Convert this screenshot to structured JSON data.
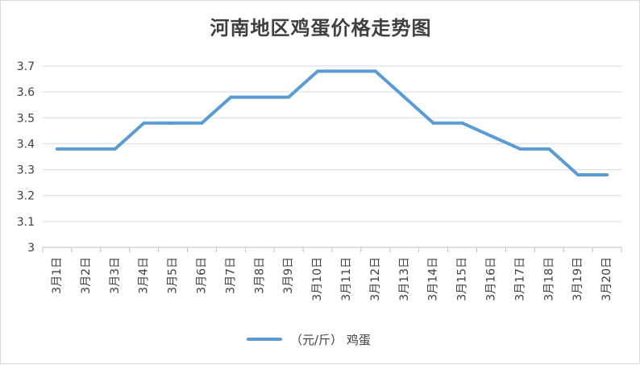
{
  "chart_data": {
    "type": "line",
    "title": "河南地区鸡蛋价格走势图",
    "categories": [
      "3月1日",
      "3月2日",
      "3月3日",
      "3月4日",
      "3月5日",
      "3月6日",
      "3月7日",
      "3月8日",
      "3月9日",
      "3月10日",
      "3月11日",
      "3月12日",
      "3月13日",
      "3月14日",
      "3月15日",
      "3月16日",
      "3月17日",
      "3月18日",
      "3月19日",
      "3月20日"
    ],
    "series": [
      {
        "name": "（元/斤） 鸡蛋",
        "color": "#5b9bd5",
        "values": [
          3.38,
          3.38,
          3.38,
          3.48,
          3.48,
          3.48,
          3.58,
          3.58,
          3.58,
          3.68,
          3.68,
          3.68,
          3.58,
          3.48,
          3.48,
          3.43,
          3.38,
          3.38,
          3.28,
          3.28
        ]
      }
    ],
    "ylim": [
      3,
      3.7
    ],
    "yticks": [
      "3",
      "3.1",
      "3.2",
      "3.3",
      "3.4",
      "3.5",
      "3.6",
      "3.7"
    ],
    "grid": true,
    "legend_position": "bottom"
  }
}
